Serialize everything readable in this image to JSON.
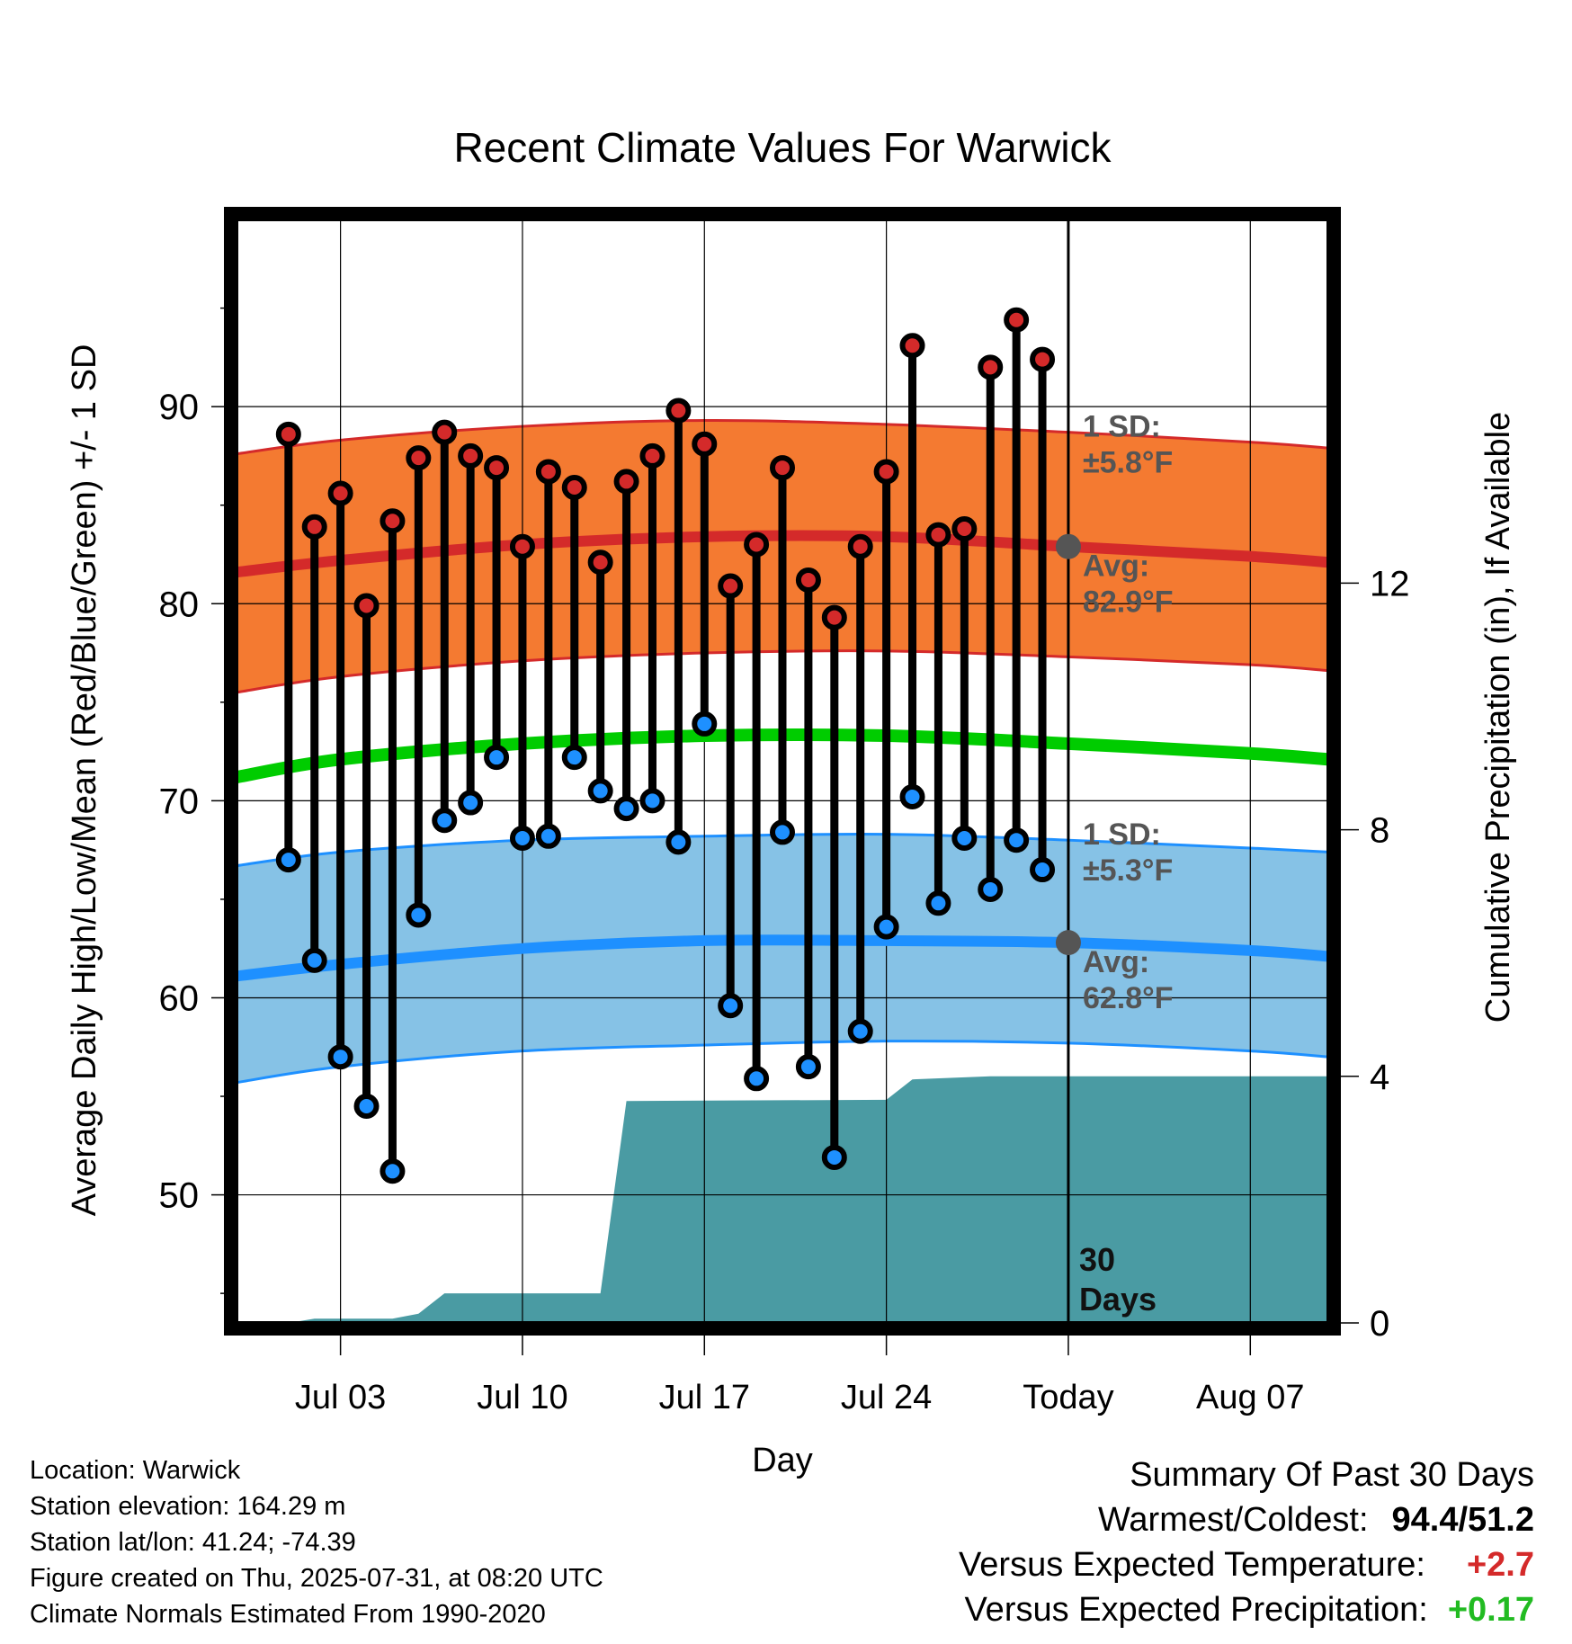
{
  "chart_data": {
    "type": "line",
    "title": "Recent Climate Values For Warwick",
    "xlabel": "Day",
    "ylabel": "Average Daily High/Low/Mean (Red/Blue/Green) +/- 1 SD",
    "y2label": "Cumulative Precipitation (in), If Available",
    "ylim": [
      43.5,
      99.5
    ],
    "y2lim": [
      0,
      17.9
    ],
    "xlim": [
      "2025-06-29",
      "2025-08-10"
    ],
    "x_ticks": [
      "Jul 03",
      "Jul 10",
      "Jul 17",
      "Jul 24",
      "Today",
      "Aug 07"
    ],
    "x_tick_dates": [
      "2025-07-03",
      "2025-07-10",
      "2025-07-17",
      "2025-07-24",
      "2025-07-31",
      "2025-08-07"
    ],
    "y_ticks": [
      50,
      60,
      70,
      80,
      90
    ],
    "y2_ticks": [
      0,
      4,
      8,
      12
    ],
    "today": "2025-07-31",
    "today_label": "Today",
    "window_label": [
      "30",
      "Days"
    ],
    "days": [
      "2025-07-01",
      "2025-07-02",
      "2025-07-03",
      "2025-07-04",
      "2025-07-05",
      "2025-07-06",
      "2025-07-07",
      "2025-07-08",
      "2025-07-09",
      "2025-07-10",
      "2025-07-11",
      "2025-07-12",
      "2025-07-13",
      "2025-07-14",
      "2025-07-15",
      "2025-07-16",
      "2025-07-17",
      "2025-07-18",
      "2025-07-19",
      "2025-07-20",
      "2025-07-21",
      "2025-07-22",
      "2025-07-23",
      "2025-07-24",
      "2025-07-25",
      "2025-07-26",
      "2025-07-27",
      "2025-07-28",
      "2025-07-29",
      "2025-07-30"
    ],
    "series": [
      {
        "name": "Daily High",
        "color": "#d42a2a",
        "values": [
          88.6,
          83.9,
          85.6,
          79.9,
          84.2,
          87.4,
          88.7,
          87.5,
          86.9,
          82.9,
          86.7,
          85.9,
          82.1,
          86.2,
          87.5,
          89.8,
          88.1,
          80.9,
          83.0,
          86.9,
          81.2,
          79.3,
          82.9,
          86.7,
          93.1,
          83.5,
          83.8,
          92.0,
          94.4,
          92.4
        ]
      },
      {
        "name": "Daily Low",
        "color": "#1e90ff",
        "values": [
          67.0,
          61.9,
          57.0,
          54.5,
          51.2,
          64.2,
          69.0,
          69.9,
          72.2,
          68.1,
          68.2,
          72.2,
          70.5,
          69.6,
          70.0,
          67.9,
          73.9,
          59.6,
          55.9,
          68.4,
          56.5,
          51.9,
          58.3,
          63.6,
          70.2,
          64.8,
          68.1,
          65.5,
          68.0,
          66.5
        ]
      }
    ],
    "normals": {
      "dates": [
        "2025-06-29",
        "2025-07-03",
        "2025-07-10",
        "2025-07-17",
        "2025-07-24",
        "2025-07-31",
        "2025-08-07",
        "2025-08-10"
      ],
      "high_avg": [
        81.6,
        82.2,
        83.0,
        83.4,
        83.4,
        82.9,
        82.4,
        82.1
      ],
      "high_plus": [
        87.6,
        88.3,
        89.0,
        89.3,
        89.1,
        88.7,
        88.2,
        87.9
      ],
      "high_minus": [
        75.5,
        76.3,
        77.1,
        77.5,
        77.6,
        77.3,
        76.9,
        76.6
      ],
      "mean": [
        71.2,
        72.1,
        72.9,
        73.3,
        73.3,
        72.9,
        72.4,
        72.1
      ],
      "low_avg": [
        61.1,
        61.7,
        62.5,
        62.9,
        62.9,
        62.8,
        62.4,
        62.1
      ],
      "low_plus": [
        66.7,
        67.4,
        68.0,
        68.2,
        68.3,
        68.0,
        67.6,
        67.4
      ],
      "low_minus": [
        55.7,
        56.5,
        57.3,
        57.6,
        57.8,
        57.7,
        57.3,
        57.0
      ]
    },
    "high_band_color": "#f47a31",
    "low_band_color": "#86c2e6",
    "mean_color": "#00cc00",
    "precip_color": "#4a9ba3",
    "precip": {
      "dates": [
        "2025-06-29",
        "2025-07-01",
        "2025-07-02",
        "2025-07-05",
        "2025-07-06",
        "2025-07-07",
        "2025-07-13",
        "2025-07-14",
        "2025-07-24",
        "2025-07-25",
        "2025-07-28",
        "2025-07-31",
        "2025-08-10"
      ],
      "values": [
        0,
        0,
        0.07,
        0.07,
        0.15,
        0.48,
        0.48,
        3.6,
        3.62,
        3.95,
        4.0,
        4.0,
        4.0
      ]
    },
    "annotations": {
      "high_sd": {
        "line1": "1 SD:",
        "line2": "±5.8°F"
      },
      "high_avg": {
        "line1": "Avg:",
        "line2": "82.9°F"
      },
      "low_sd": {
        "line1": "1 SD:",
        "line2": "±5.3°F"
      },
      "low_avg": {
        "line1": "Avg:",
        "line2": "62.8°F"
      }
    }
  },
  "info": {
    "location": "Location: Warwick",
    "elevation": "Station elevation: 164.29 m",
    "latlon": "Station lat/lon: 41.24; -74.39",
    "created": "Figure created on Thu, 2025-07-31, at 08:20 UTC",
    "normals": "Climate Normals Estimated From 1990-2020"
  },
  "summary": {
    "title": "Summary Of Past 30 Days",
    "warm_label": "Warmest/Coldest:",
    "warm_value": "94.4/51.2",
    "temp_label": "Versus Expected Temperature:",
    "temp_value": "+2.7",
    "temp_color": "#d42a2a",
    "precip_label": "Versus Expected Precipitation:",
    "precip_value": "+0.17",
    "precip_color": "#22bb22"
  }
}
